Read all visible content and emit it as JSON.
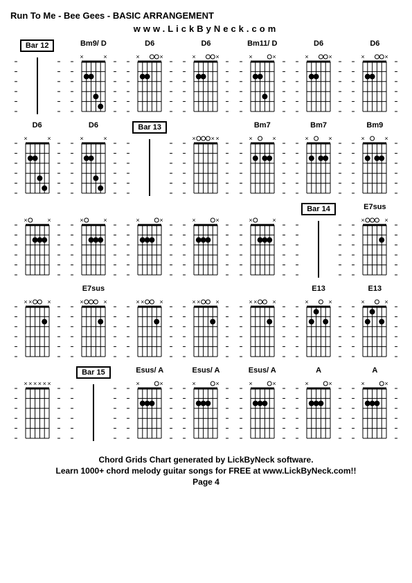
{
  "title": "Run To Me - Bee Gees - BASIC ARRANGEMENT",
  "website": "www.LickByNeck.com",
  "footer": {
    "line1": "Chord Grids Chart generated by LickByNeck software.",
    "line2": "Learn 1000+ chord melody guitar songs for FREE at www.LickByNeck.com!!",
    "line3": "Page 4"
  },
  "grid_color": "#000000",
  "bg_color": "#ffffff",
  "chord_diagram": {
    "strings": 6,
    "frets": 5,
    "width": 50,
    "height": 90,
    "dot_radius": 4
  },
  "chords": [
    {
      "label": "Bar 12",
      "is_bar": true,
      "muted": [],
      "open": [],
      "dots": []
    },
    {
      "label": "Bm9/ D",
      "muted": [
        1,
        6
      ],
      "open": [],
      "dots": [
        [
          2,
          2
        ],
        [
          3,
          2
        ],
        [
          4,
          4
        ],
        [
          5,
          5
        ]
      ]
    },
    {
      "label": "D6",
      "muted": [
        1,
        6
      ],
      "open": [
        4,
        5
      ],
      "dots": [
        [
          2,
          2
        ],
        [
          3,
          2
        ]
      ]
    },
    {
      "label": "D6",
      "muted": [
        1,
        6
      ],
      "open": [
        4,
        5
      ],
      "dots": [
        [
          2,
          2
        ],
        [
          3,
          2
        ]
      ]
    },
    {
      "label": "Bm11/ D",
      "muted": [
        1,
        6
      ],
      "open": [
        5
      ],
      "dots": [
        [
          2,
          2
        ],
        [
          3,
          2
        ],
        [
          4,
          4
        ]
      ]
    },
    {
      "label": "D6",
      "muted": [
        1,
        6
      ],
      "open": [
        4,
        5
      ],
      "dots": [
        [
          2,
          2
        ],
        [
          3,
          2
        ]
      ]
    },
    {
      "label": "D6",
      "muted": [
        1,
        6
      ],
      "open": [
        4,
        5
      ],
      "dots": [
        [
          2,
          2
        ],
        [
          3,
          2
        ]
      ]
    },
    {
      "label": "D6",
      "muted": [
        1,
        6
      ],
      "open": [],
      "dots": [
        [
          2,
          2
        ],
        [
          3,
          2
        ],
        [
          4,
          4
        ],
        [
          5,
          5
        ]
      ]
    },
    {
      "label": "D6",
      "muted": [
        1,
        6
      ],
      "open": [],
      "dots": [
        [
          2,
          2
        ],
        [
          3,
          2
        ],
        [
          4,
          4
        ],
        [
          5,
          5
        ]
      ]
    },
    {
      "label": "Bar 13",
      "is_bar": true,
      "muted": [],
      "open": [],
      "dots": []
    },
    {
      "label": "",
      "muted": [
        1,
        5,
        6
      ],
      "open": [
        2,
        3,
        4
      ],
      "dots": []
    },
    {
      "label": "Bm7",
      "muted": [
        1,
        6
      ],
      "open": [
        3
      ],
      "dots": [
        [
          2,
          2
        ],
        [
          4,
          2
        ],
        [
          5,
          2
        ]
      ]
    },
    {
      "label": "Bm7",
      "muted": [
        1,
        6
      ],
      "open": [
        3
      ],
      "dots": [
        [
          2,
          2
        ],
        [
          4,
          2
        ],
        [
          5,
          2
        ]
      ]
    },
    {
      "label": "Bm9",
      "muted": [
        1,
        6
      ],
      "open": [
        3
      ],
      "dots": [
        [
          2,
          2
        ],
        [
          4,
          2
        ],
        [
          5,
          2
        ]
      ]
    },
    {
      "label": "",
      "muted": [
        1,
        6
      ],
      "open": [
        2
      ],
      "dots": [
        [
          3,
          2
        ],
        [
          4,
          2
        ],
        [
          5,
          2
        ]
      ]
    },
    {
      "label": "",
      "muted": [
        1,
        6
      ],
      "open": [
        2
      ],
      "dots": [
        [
          3,
          2
        ],
        [
          4,
          2
        ],
        [
          5,
          2
        ]
      ]
    },
    {
      "label": "",
      "muted": [
        1,
        6
      ],
      "open": [
        5
      ],
      "dots": [
        [
          2,
          2
        ],
        [
          3,
          2
        ],
        [
          4,
          2
        ]
      ]
    },
    {
      "label": "",
      "muted": [
        1,
        6
      ],
      "open": [
        5
      ],
      "dots": [
        [
          2,
          2
        ],
        [
          3,
          2
        ],
        [
          4,
          2
        ]
      ]
    },
    {
      "label": "",
      "muted": [
        1,
        6
      ],
      "open": [
        2
      ],
      "dots": [
        [
          3,
          2
        ],
        [
          4,
          2
        ],
        [
          5,
          2
        ]
      ]
    },
    {
      "label": "Bar 14",
      "is_bar": true,
      "muted": [],
      "open": [],
      "dots": []
    },
    {
      "label": "E7sus",
      "muted": [
        1,
        6
      ],
      "open": [
        2,
        3,
        4
      ],
      "dots": [
        [
          5,
          2
        ]
      ]
    },
    {
      "label": "",
      "muted": [
        1,
        2,
        6
      ],
      "open": [
        3,
        4
      ],
      "dots": [
        [
          5,
          2
        ]
      ]
    },
    {
      "label": "E7sus",
      "muted": [
        1,
        6
      ],
      "open": [
        2,
        3,
        4
      ],
      "dots": [
        [
          5,
          2
        ]
      ]
    },
    {
      "label": "",
      "muted": [
        1,
        2,
        6
      ],
      "open": [
        3,
        4
      ],
      "dots": [
        [
          5,
          2
        ]
      ]
    },
    {
      "label": "",
      "muted": [
        1,
        2,
        6
      ],
      "open": [
        3,
        4
      ],
      "dots": [
        [
          5,
          2
        ]
      ]
    },
    {
      "label": "",
      "muted": [
        1,
        2,
        6
      ],
      "open": [
        3,
        4
      ],
      "dots": [
        [
          5,
          2
        ]
      ]
    },
    {
      "label": "E13",
      "muted": [
        1,
        6
      ],
      "open": [
        4
      ],
      "dots": [
        [
          2,
          2
        ],
        [
          3,
          1
        ],
        [
          5,
          2
        ]
      ]
    },
    {
      "label": "E13",
      "muted": [
        1,
        6
      ],
      "open": [
        4
      ],
      "dots": [
        [
          2,
          2
        ],
        [
          3,
          1
        ],
        [
          5,
          2
        ]
      ]
    },
    {
      "label": "",
      "muted": [
        1,
        2,
        3,
        4,
        5,
        6
      ],
      "open": [],
      "dots": []
    },
    {
      "label": "Bar 15",
      "is_bar": true,
      "muted": [],
      "open": [],
      "dots": []
    },
    {
      "label": "Esus/ A",
      "muted": [
        1,
        6
      ],
      "open": [
        5
      ],
      "dots": [
        [
          2,
          2
        ],
        [
          3,
          2
        ],
        [
          4,
          2
        ]
      ]
    },
    {
      "label": "Esus/ A",
      "muted": [
        1,
        6
      ],
      "open": [
        5
      ],
      "dots": [
        [
          2,
          2
        ],
        [
          3,
          2
        ],
        [
          4,
          2
        ]
      ]
    },
    {
      "label": "Esus/ A",
      "muted": [
        1,
        6
      ],
      "open": [
        5
      ],
      "dots": [
        [
          2,
          2
        ],
        [
          3,
          2
        ],
        [
          4,
          2
        ]
      ]
    },
    {
      "label": "A",
      "muted": [
        1,
        6
      ],
      "open": [
        5
      ],
      "dots": [
        [
          2,
          2
        ],
        [
          3,
          2
        ],
        [
          4,
          2
        ]
      ]
    },
    {
      "label": "A",
      "muted": [
        1,
        6
      ],
      "open": [
        5
      ],
      "dots": [
        [
          2,
          2
        ],
        [
          3,
          2
        ],
        [
          4,
          2
        ]
      ]
    }
  ]
}
